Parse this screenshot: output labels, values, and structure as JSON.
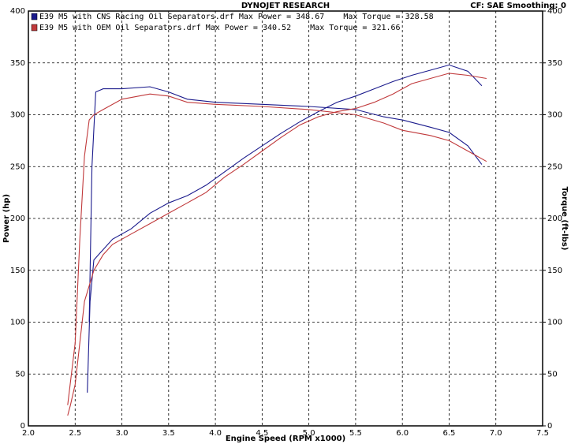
{
  "chart_data": {
    "type": "line",
    "title": "DYNOJET RESEARCH",
    "settings_text": "CF: SAE  Smoothing: 0",
    "x_label": "Engine Speed (RPM x1000)",
    "y_label": "Power (hp)",
    "y2_label": "Torque (ft-lbs)",
    "xlim": [
      2.0,
      7.5
    ],
    "xticks": [
      {
        "value": 2.0,
        "label": "2.0"
      },
      {
        "value": 2.5,
        "label": "2.5"
      },
      {
        "value": 3.0,
        "label": "3.0"
      },
      {
        "value": 3.5,
        "label": "3.5"
      },
      {
        "value": 4.0,
        "label": "4.0"
      },
      {
        "value": 4.5,
        "label": "4.5"
      },
      {
        "value": 5.0,
        "label": "5.0"
      },
      {
        "value": 5.5,
        "label": "5.5"
      },
      {
        "value": 6.0,
        "label": "6.0"
      },
      {
        "value": 6.5,
        "label": "6.5"
      },
      {
        "value": 7.0,
        "label": "7.0"
      },
      {
        "value": 7.5,
        "label": "7.5"
      }
    ],
    "ylim": [
      0,
      400
    ],
    "yticks": [
      0,
      50,
      100,
      150,
      200,
      250,
      300,
      350,
      400
    ],
    "y2lim": [
      0,
      400
    ],
    "y2ticks": [
      0,
      50,
      100,
      150,
      200,
      250,
      300,
      350,
      400
    ],
    "grid": true,
    "runs": [
      {
        "label": "E39 M5 with CNS Racing Oil Separators.drf Max Power = 348.67    Max Torque = 328.58",
        "color": "#1a1a8c",
        "power": {
          "x": [
            2.63,
            2.66,
            2.7,
            2.8,
            2.9,
            3.1,
            3.3,
            3.5,
            3.7,
            3.9,
            4.1,
            4.3,
            4.5,
            4.7,
            4.9,
            5.1,
            5.3,
            5.5,
            5.7,
            5.9,
            6.1,
            6.3,
            6.5,
            6.7,
            6.85
          ],
          "values": [
            32,
            120,
            160,
            170,
            180,
            190,
            205,
            215,
            222,
            232,
            245,
            258,
            270,
            282,
            293,
            303,
            312,
            318,
            325,
            332,
            338,
            343,
            348,
            342,
            328
          ]
        },
        "torque": {
          "x": [
            2.65,
            2.68,
            2.72,
            2.8,
            3.0,
            3.3,
            3.5,
            3.7,
            4.0,
            4.5,
            5.0,
            5.5,
            5.8,
            6.0,
            6.3,
            6.5,
            6.7,
            6.85
          ],
          "values": [
            100,
            250,
            322,
            325,
            325,
            327,
            322,
            315,
            312,
            310,
            308,
            305,
            298,
            295,
            288,
            283,
            270,
            252
          ]
        }
      },
      {
        "label": "E39 M5 with OEM Oil Separators.drf Max Power = 340.52    Max Torque = 321.66",
        "color": "#c0393b",
        "power": {
          "x": [
            2.42,
            2.45,
            2.5,
            2.55,
            2.6,
            2.7,
            2.8,
            2.9,
            3.1,
            3.3,
            3.5,
            3.7,
            3.9,
            4.1,
            4.3,
            4.5,
            4.7,
            4.9,
            5.1,
            5.3,
            5.5,
            5.7,
            5.9,
            6.1,
            6.3,
            6.5,
            6.7,
            6.9
          ],
          "values": [
            10,
            20,
            40,
            80,
            120,
            150,
            165,
            175,
            185,
            195,
            205,
            215,
            225,
            240,
            252,
            265,
            278,
            290,
            298,
            303,
            306,
            312,
            320,
            330,
            335,
            340,
            338,
            335
          ]
        },
        "torque": {
          "x": [
            2.42,
            2.5,
            2.55,
            2.6,
            2.65,
            2.7,
            2.8,
            3.0,
            3.3,
            3.5,
            3.7,
            4.0,
            4.5,
            5.0,
            5.5,
            5.8,
            6.0,
            6.3,
            6.5,
            6.7,
            6.9
          ],
          "values": [
            20,
            80,
            180,
            260,
            295,
            300,
            305,
            315,
            320,
            318,
            312,
            310,
            308,
            305,
            300,
            292,
            285,
            280,
            275,
            265,
            255
          ]
        }
      }
    ]
  }
}
